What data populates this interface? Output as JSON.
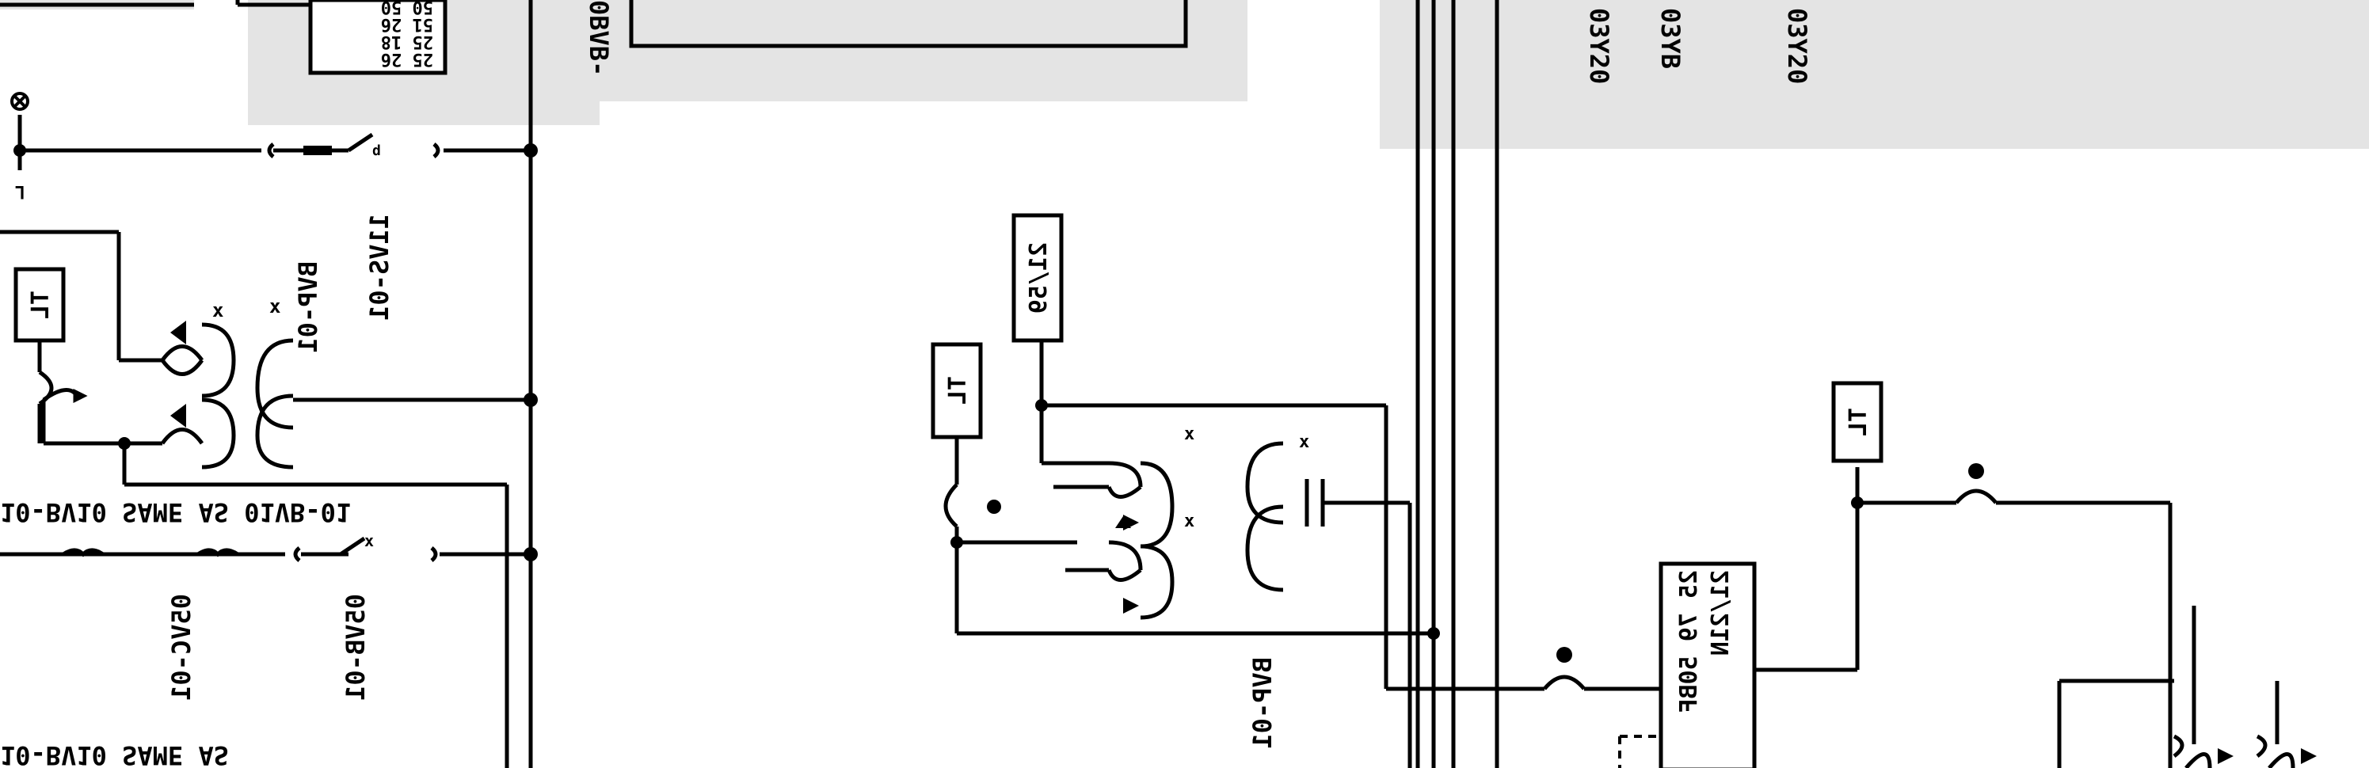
{
  "diagram": {
    "mirrored": true,
    "ink_color": "#000000",
    "background_color": "#ffffff",
    "panel_color": "#e4e4e4",
    "labels": {
      "relay_tl_left": "TL",
      "relay_tl_middle": "TL",
      "relay_tl_right": "TL",
      "relay_2159": "21/59",
      "relay_box_line1": "25 79 50BF",
      "relay_box_line2": "21/21N",
      "ct_main_label": "BVP-01",
      "ct_mid_label": "BVP-01",
      "label_same_as_upper": "10-BV10 SAME AS 01VB-01",
      "label_same_as_lower": "10-BV10 SAME AS",
      "breaker_label_1": "11VS-01",
      "breaker_label_2": "05VB-01",
      "breaker_label_3": "05VC-01",
      "breaker_label_top": "0BVB-",
      "top_box_lines": [
        "25 26",
        "25 18",
        "51 26",
        "50 50"
      ],
      "top_right_labels": [
        "03Y20",
        "03YB",
        "03Y20"
      ]
    }
  }
}
